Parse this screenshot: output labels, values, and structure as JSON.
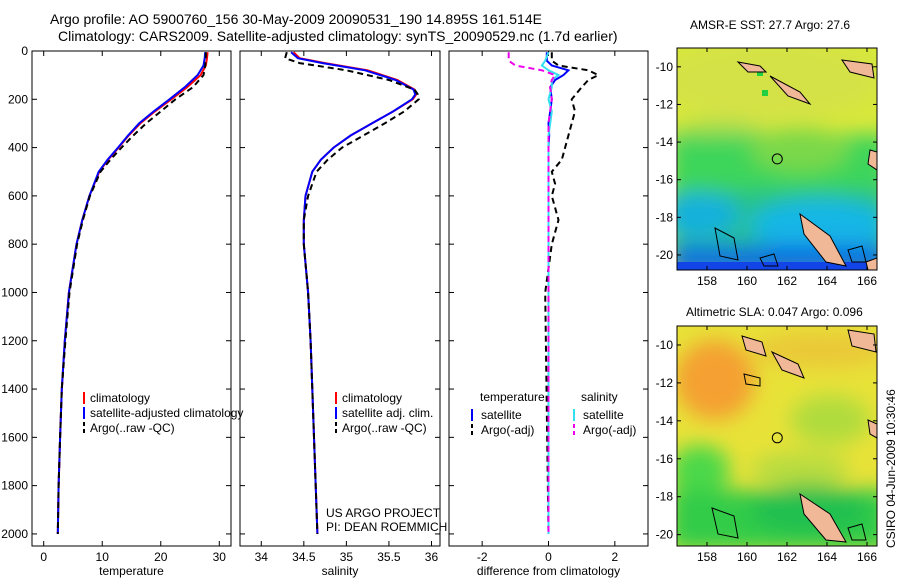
{
  "title_line1": "Argo profile: AO 5900760_156 30-May-2009 20090531_190 14.895S 161.514E",
  "title_line2": "Climatology: CARS2009. Satellite-adjusted climatology: synTS_20090529.nc (1.7d earlier)",
  "credit": "CSIRO 04-Jun-2009 10:30:46",
  "colors": {
    "red": "#ff0000",
    "blue": "#0000ff",
    "black": "#000000",
    "cyan": "#33e0f0",
    "magenta": "#ee00ee"
  },
  "chart_data": [
    {
      "type": "line",
      "name": "temperature-profile",
      "xlabel": "temperature",
      "xlim": [
        -2,
        32
      ],
      "ylim": [
        0,
        2050
      ],
      "y_reversed": true,
      "xticks": [
        0,
        10,
        20,
        30
      ],
      "yticks": [
        0,
        200,
        400,
        600,
        800,
        1000,
        1200,
        1400,
        1600,
        1800,
        2000
      ],
      "y": [
        5,
        30,
        60,
        100,
        150,
        200,
        250,
        300,
        350,
        400,
        450,
        500,
        600,
        700,
        800,
        1000,
        1200,
        1400,
        1600,
        1800,
        2000
      ],
      "series": [
        {
          "name": "climatology",
          "color": "red",
          "dash": "",
          "values": [
            28,
            27.9,
            27.7,
            26.8,
            24.5,
            21.8,
            19,
            16.5,
            14.5,
            12.8,
            11,
            9.5,
            7.8,
            6.6,
            5.6,
            4.3,
            3.6,
            3.1,
            2.8,
            2.55,
            2.4
          ]
        },
        {
          "name": "satellite-adjusted climatology",
          "color": "blue",
          "dash": "",
          "values": [
            27.6,
            27.5,
            27.3,
            26.3,
            24.1,
            21.5,
            18.8,
            16.3,
            14.4,
            12.7,
            10.9,
            9.4,
            7.8,
            6.6,
            5.6,
            4.3,
            3.6,
            3.1,
            2.8,
            2.55,
            2.4
          ]
        },
        {
          "name": "Argo(..raw -QC)",
          "color": "black",
          "dash": "6,4",
          "values": [
            27.7,
            27.7,
            27.6,
            27.3,
            25.5,
            22.5,
            20,
            17.5,
            15.3,
            13.3,
            11.4,
            9.7,
            7.9,
            6.7,
            5.7,
            4.4,
            3.7,
            3.1,
            2.8,
            2.55,
            2.4
          ]
        }
      ],
      "legend": {
        "location": "lower-right",
        "entries": [
          "climatology",
          "satellite-adjusted climatology",
          "Argo(..raw -QC)"
        ]
      }
    },
    {
      "type": "line",
      "name": "salinity-profile",
      "xlabel": "salinity",
      "xlim": [
        33.75,
        36.1
      ],
      "ylim": [
        0,
        2050
      ],
      "y_reversed": true,
      "xticks": [
        34,
        34.5,
        35,
        35.5,
        36
      ],
      "y": [
        5,
        30,
        50,
        80,
        120,
        160,
        180,
        200,
        250,
        300,
        350,
        400,
        450,
        500,
        600,
        700,
        800,
        1000,
        1200,
        1400,
        1600,
        1800,
        2000
      ],
      "series": [
        {
          "name": "climatology",
          "color": "red",
          "dash": "",
          "values": [
            34.38,
            34.45,
            34.75,
            35.25,
            35.6,
            35.8,
            35.82,
            35.78,
            35.55,
            35.3,
            35.05,
            34.85,
            34.7,
            34.6,
            34.52,
            34.5,
            34.5,
            34.55,
            34.58,
            34.6,
            34.62,
            34.64,
            34.66
          ]
        },
        {
          "name": "satellite adj. clim.",
          "color": "blue",
          "dash": "",
          "values": [
            34.35,
            34.43,
            34.72,
            35.22,
            35.58,
            35.79,
            35.81,
            35.77,
            35.55,
            35.3,
            35.05,
            34.85,
            34.7,
            34.6,
            34.52,
            34.5,
            34.5,
            34.55,
            34.58,
            34.6,
            34.62,
            34.64,
            34.66
          ]
        },
        {
          "name": "Argo(..raw -QC)",
          "color": "black",
          "dash": "6,4",
          "values": [
            34.3,
            34.28,
            34.45,
            35.0,
            35.5,
            35.8,
            35.84,
            35.85,
            35.68,
            35.45,
            35.2,
            34.95,
            34.78,
            34.65,
            34.55,
            34.5,
            34.5,
            34.55,
            34.58,
            34.6,
            34.62,
            34.64,
            34.66
          ]
        }
      ],
      "legend": {
        "location": "lower-right",
        "entries": [
          "climatology",
          "satellite adj. clim.",
          "Argo(..raw -QC)"
        ]
      },
      "annotations": [
        "US ARGO PROJECT",
        "PI: DEAN ROEMMICH"
      ]
    },
    {
      "type": "line",
      "name": "difference-from-climatology",
      "xlabel": "difference from climatology",
      "xlim": [
        -3,
        3
      ],
      "ylim": [
        0,
        2050
      ],
      "y_reversed": true,
      "xticks": [
        -2,
        0,
        2
      ],
      "y": [
        5,
        40,
        60,
        80,
        100,
        120,
        150,
        200,
        250,
        300,
        350,
        400,
        450,
        500,
        550,
        600,
        700,
        800,
        1000,
        2000
      ],
      "series": [
        {
          "name": "temperature satellite",
          "color": "blue",
          "dash": "",
          "values": [
            -0.05,
            -0.05,
            0.1,
            0.6,
            0.45,
            0.2,
            0.05,
            0.1,
            0.05,
            0.0,
            0.02,
            0.0,
            0.0,
            0.0,
            0.0,
            0.0,
            0.0,
            0.0,
            0.0,
            0.0
          ]
        },
        {
          "name": "temperature Argo(-adj)",
          "color": "black",
          "dash": "6,4",
          "values": [
            0.1,
            0.1,
            0.3,
            1.2,
            1.5,
            1.2,
            1.0,
            0.7,
            0.8,
            0.7,
            0.6,
            0.5,
            0.4,
            0.1,
            0.2,
            0.1,
            0.3,
            0.1,
            -0.1,
            0.0
          ]
        },
        {
          "name": "salinity satellite",
          "color": "cyan",
          "dash": "",
          "values": [
            0.0,
            -0.1,
            -0.2,
            0.0,
            0.3,
            0.1,
            0.1,
            0.0,
            0.1,
            0.05,
            0.0,
            0.0,
            0.0,
            0.0,
            0.0,
            0.0,
            0.0,
            0.0,
            0.0,
            0.0
          ]
        },
        {
          "name": "salinity Argo(-adj)",
          "color": "magenta",
          "dash": "6,4",
          "values": [
            -1.2,
            -1.2,
            -1.0,
            -0.2,
            0.2,
            0.1,
            0.05,
            0.1,
            0.05,
            0.0,
            0.0,
            0.0,
            0.0,
            0.0,
            0.0,
            0.0,
            0.0,
            0.0,
            0.0,
            0.0
          ]
        }
      ],
      "legend": {
        "location": "lower-center",
        "headers": [
          "temperature",
          "salinity"
        ],
        "entries": [
          "satellite",
          "Argo(-adj)",
          "satellite",
          "Argo(-adj)"
        ]
      }
    },
    {
      "type": "heatmap",
      "name": "sst-map",
      "title": "AMSR-E SST: 27.7  Argo: 27.6",
      "xlim": [
        156.5,
        166.5
      ],
      "ylim": [
        -20.8,
        -9
      ],
      "xticks": [
        158,
        160,
        162,
        164,
        166
      ],
      "yticks": [
        -10,
        -12,
        -14,
        -16,
        -18,
        -20
      ],
      "marker": {
        "lon": 161.514,
        "lat": -14.895
      }
    },
    {
      "type": "heatmap",
      "name": "sla-map",
      "title": "Altimetric SLA: 0.047  Argo: 0.096",
      "xlim": [
        156.5,
        166.5
      ],
      "ylim": [
        -20.6,
        -9
      ],
      "xticks": [
        158,
        160,
        162,
        164,
        166
      ],
      "yticks": [
        -10,
        -12,
        -14,
        -16,
        -18,
        -20
      ],
      "marker": {
        "lon": 161.514,
        "lat": -14.895
      }
    }
  ]
}
